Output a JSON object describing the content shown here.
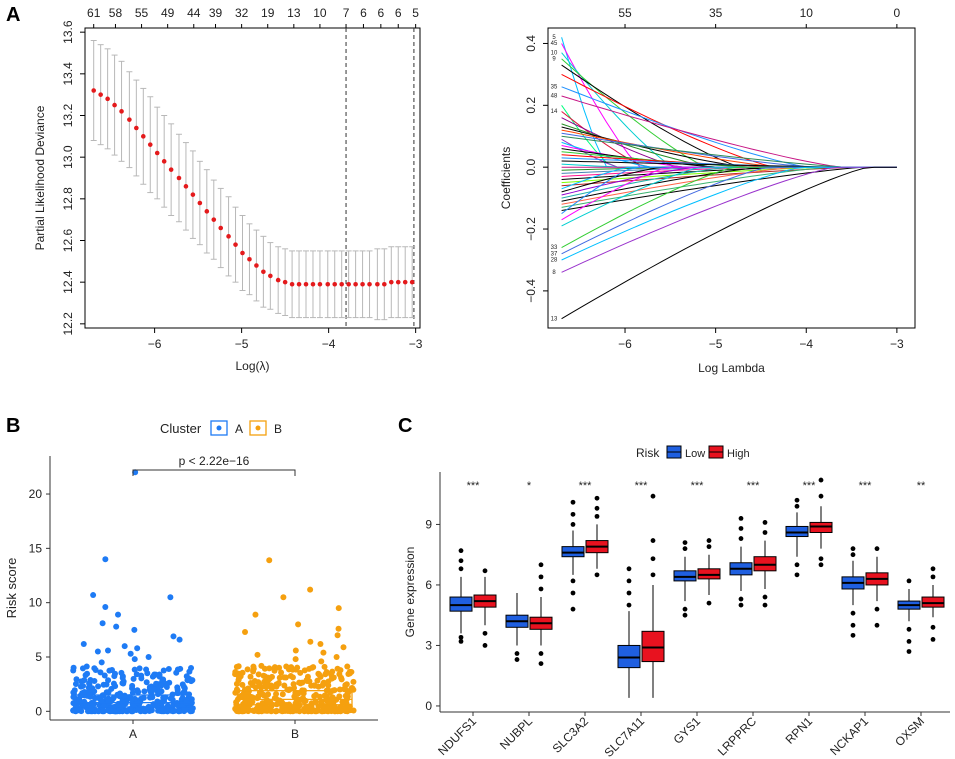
{
  "panels": {
    "A": "A",
    "B": "B",
    "C": "C"
  },
  "chart_data": [
    {
      "id": "A-left",
      "type": "line",
      "title": "",
      "xlabel": "Log(λ)",
      "ylabel": "Partial Likelihood Deviance",
      "xlim": [
        -6.8,
        -2.95
      ],
      "ylim": [
        12.18,
        13.62
      ],
      "x_ticks": [
        -6,
        -5,
        -4,
        -3
      ],
      "y_ticks": [
        12.2,
        12.4,
        12.6,
        12.8,
        13.0,
        13.2,
        13.4,
        13.6
      ],
      "top_ticks_x": [
        -6.7,
        -6.45,
        -6.15,
        -5.85,
        -5.55,
        -5.3,
        -5.0,
        -4.7,
        -4.4,
        -4.1,
        -3.8,
        -3.6,
        -3.4,
        -3.2,
        -3.0
      ],
      "top_ticks_labels": [
        "61",
        "58",
        "55",
        "49",
        "44",
        "39",
        "32",
        "19",
        "13",
        "10",
        "7",
        "6",
        "6",
        "6",
        "5"
      ],
      "vlines": [
        -3.8,
        -3.02
      ],
      "points": {
        "x": [
          -6.7,
          -6.62,
          -6.54,
          -6.46,
          -6.38,
          -6.29,
          -6.21,
          -6.13,
          -6.05,
          -5.97,
          -5.89,
          -5.81,
          -5.72,
          -5.64,
          -5.56,
          -5.48,
          -5.4,
          -5.32,
          -5.24,
          -5.15,
          -5.07,
          -4.99,
          -4.91,
          -4.83,
          -4.75,
          -4.67,
          -4.58,
          -4.5,
          -4.42,
          -4.34,
          -4.26,
          -4.18,
          -4.1,
          -4.01,
          -3.93,
          -3.85,
          -3.77,
          -3.69,
          -3.61,
          -3.53,
          -3.44,
          -3.36,
          -3.28,
          -3.2,
          -3.12,
          -3.04
        ],
        "y": [
          13.32,
          13.3,
          13.28,
          13.25,
          13.22,
          13.18,
          13.14,
          13.1,
          13.06,
          13.02,
          12.98,
          12.94,
          12.9,
          12.86,
          12.82,
          12.78,
          12.74,
          12.7,
          12.66,
          12.62,
          12.58,
          12.54,
          12.51,
          12.48,
          12.45,
          12.43,
          12.41,
          12.4,
          12.39,
          12.39,
          12.39,
          12.39,
          12.39,
          12.39,
          12.39,
          12.39,
          12.39,
          12.39,
          12.39,
          12.39,
          12.39,
          12.39,
          12.4,
          12.4,
          12.4,
          12.4
        ],
        "err": [
          0.24,
          0.24,
          0.24,
          0.24,
          0.24,
          0.23,
          0.23,
          0.23,
          0.23,
          0.22,
          0.22,
          0.22,
          0.21,
          0.21,
          0.21,
          0.2,
          0.2,
          0.19,
          0.19,
          0.19,
          0.18,
          0.18,
          0.17,
          0.17,
          0.17,
          0.16,
          0.16,
          0.16,
          0.16,
          0.16,
          0.16,
          0.16,
          0.16,
          0.16,
          0.16,
          0.16,
          0.16,
          0.16,
          0.16,
          0.16,
          0.17,
          0.17,
          0.17,
          0.17,
          0.17,
          0.17
        ]
      }
    },
    {
      "id": "A-right",
      "type": "line",
      "title": "",
      "xlabel": "Log Lambda",
      "ylabel": "Coefficients",
      "xlim": [
        -6.85,
        -2.8
      ],
      "ylim": [
        -0.52,
        0.45
      ],
      "x_ticks": [
        -6,
        -5,
        -4,
        -3
      ],
      "y_ticks": [
        -0.4,
        -0.2,
        0.0,
        0.2,
        0.4
      ],
      "top_ticks_x": [
        -6.0,
        -5.0,
        -4.0,
        -3.0
      ],
      "top_ticks_labels": [
        "55",
        "35",
        "10",
        "0"
      ],
      "side_labels": [
        {
          "text": "5",
          "y": 0.42
        },
        {
          "text": "45",
          "y": 0.4
        },
        {
          "text": "10",
          "y": 0.37
        },
        {
          "text": "9",
          "y": 0.35
        },
        {
          "text": "35",
          "y": 0.26
        },
        {
          "text": "48",
          "y": 0.23
        },
        {
          "text": "14",
          "y": 0.18
        },
        {
          "text": "33",
          "y": -0.26
        },
        {
          "text": "37",
          "y": -0.28
        },
        {
          "text": "28",
          "y": -0.3
        },
        {
          "text": "8",
          "y": -0.34
        },
        {
          "text": "13",
          "y": -0.49
        }
      ],
      "series_start_values": [
        0.42,
        0.4,
        0.37,
        0.35,
        0.33,
        0.3,
        0.26,
        0.23,
        0.2,
        0.18,
        0.16,
        0.14,
        0.13,
        0.12,
        0.11,
        0.1,
        0.09,
        0.08,
        0.07,
        0.06,
        0.05,
        0.04,
        0.03,
        0.02,
        0.01,
        0.0,
        -0.01,
        -0.02,
        -0.03,
        -0.04,
        -0.05,
        -0.06,
        -0.07,
        -0.08,
        -0.09,
        -0.1,
        -0.11,
        -0.12,
        -0.13,
        -0.14,
        -0.15,
        -0.17,
        -0.19,
        -0.26,
        -0.28,
        -0.3,
        -0.34,
        -0.49
      ],
      "series_colors": [
        "#00BFFF",
        "#FF00FF",
        "#00CED1",
        "#32CD32",
        "#000000",
        "#FF0000",
        "#1E90FF",
        "#C71585",
        "#00FF7F",
        "#DC143C",
        "#8B008B",
        "#228B22",
        "#000000",
        "#FF4500",
        "#4169E1",
        "#2E8B57",
        "#9932CC",
        "#00BFFF",
        "#FF00FF",
        "#000000",
        "#32CD32",
        "#FF0000",
        "#1E90FF",
        "#000000",
        "#00CED1",
        "#C71585",
        "#228B22",
        "#4682B4",
        "#FF1493",
        "#000000",
        "#7FFF00",
        "#B22222",
        "#00BFFF",
        "#000000",
        "#9400D3",
        "#20B2AA",
        "#000000",
        "#FF6347",
        "#3CB371",
        "#000000",
        "#1E90FF",
        "#FF00FF",
        "#00CED1",
        "#32CD32",
        "#4169E1",
        "#00BFFF",
        "#9932CC",
        "#000000"
      ]
    },
    {
      "id": "B",
      "type": "scatter",
      "title": "",
      "xlabel": "",
      "ylabel": "Risk score",
      "ylim": [
        -0.8,
        23.5
      ],
      "y_ticks": [
        0,
        5,
        10,
        15,
        20
      ],
      "categories": [
        "A",
        "B"
      ],
      "legend_title": "Cluster",
      "legend_labels": [
        "A",
        "B"
      ],
      "colors": [
        "#1E7BF5",
        "#F5A00F"
      ],
      "pvalue": "p < 2.22e−16",
      "boxes": [
        {
          "q1": 0.4,
          "median": 0.8,
          "q3": 1.5
        },
        {
          "q1": 0.6,
          "median": 1.1,
          "q3": 1.9
        }
      ],
      "outliers": [
        [
          22.0,
          14.0,
          10.7,
          10.5,
          9.6,
          8.9,
          8.1,
          7.8,
          7.5,
          6.9,
          6.6,
          6.2,
          6.0,
          5.8,
          5.6,
          5.5,
          5.3,
          5.0,
          4.8,
          4.5
        ],
        [
          13.9,
          11.2,
          10.5,
          9.5,
          8.9,
          8.0,
          7.6,
          7.3,
          7.0,
          6.4,
          6.2,
          5.9,
          5.6,
          5.4,
          5.2,
          5.0,
          4.8,
          4.6
        ]
      ]
    },
    {
      "id": "C",
      "type": "box",
      "title": "",
      "xlabel": "",
      "ylabel": "Gene expression",
      "ylim": [
        -0.3,
        11.6
      ],
      "y_ticks": [
        0,
        3,
        6,
        9
      ],
      "legend_title": "Risk",
      "legend_labels": [
        "Low",
        "High"
      ],
      "colors": [
        "#1F5FE0",
        "#E8121F"
      ],
      "categories": [
        "NDUFS1",
        "NUBPL",
        "SLC3A2",
        "SLC7A11",
        "GYS1",
        "LRPPRC",
        "RPN1",
        "NCKAP1",
        "OXSM"
      ],
      "significance": [
        "***",
        "*",
        "***",
        "***",
        "***",
        "***",
        "***",
        "***",
        "**"
      ],
      "series": [
        {
          "name": "Low",
          "boxes": [
            {
              "min": 3.6,
              "q1": 4.7,
              "median": 5.0,
              "q3": 5.4,
              "max": 6.4,
              "out_low": [
                3.2,
                3.4
              ],
              "out_high": [
                6.8,
                7.2,
                7.7
              ]
            },
            {
              "min": 3.0,
              "q1": 3.9,
              "median": 4.2,
              "q3": 4.5,
              "max": 5.6,
              "out_low": [
                2.6,
                2.3
              ],
              "out_high": []
            },
            {
              "min": 6.5,
              "q1": 7.4,
              "median": 7.6,
              "q3": 7.9,
              "max": 8.7,
              "out_low": [
                6.2,
                5.6,
                4.8
              ],
              "out_high": [
                9.0,
                9.5,
                10.1
              ]
            },
            {
              "min": 0.4,
              "q1": 1.9,
              "median": 2.4,
              "q3": 3.0,
              "max": 4.7,
              "out_low": [],
              "out_high": [
                5.0,
                5.6,
                6.2,
                6.8
              ]
            },
            {
              "min": 5.2,
              "q1": 6.2,
              "median": 6.4,
              "q3": 6.7,
              "max": 7.4,
              "out_low": [
                4.8,
                4.5
              ],
              "out_high": [
                7.8,
                8.1
              ]
            },
            {
              "min": 5.7,
              "q1": 6.5,
              "median": 6.8,
              "q3": 7.1,
              "max": 7.9,
              "out_low": [
                5.3,
                5.0
              ],
              "out_high": [
                8.3,
                8.8,
                9.3
              ]
            },
            {
              "min": 7.4,
              "q1": 8.4,
              "median": 8.6,
              "q3": 8.9,
              "max": 9.6,
              "out_low": [
                7.0,
                6.5
              ],
              "out_high": [
                9.9,
                10.2
              ]
            },
            {
              "min": 5.0,
              "q1": 5.8,
              "median": 6.1,
              "q3": 6.4,
              "max": 7.2,
              "out_low": [
                4.6,
                4.0,
                3.5
              ],
              "out_high": [
                7.5,
                7.8
              ]
            },
            {
              "min": 4.2,
              "q1": 4.8,
              "median": 5.0,
              "q3": 5.2,
              "max": 5.8,
              "out_low": [
                3.8,
                3.2,
                2.7
              ],
              "out_high": [
                6.2
              ]
            }
          ]
        },
        {
          "name": "High",
          "boxes": [
            {
              "min": 4.0,
              "q1": 4.9,
              "median": 5.2,
              "q3": 5.5,
              "max": 6.4,
              "out_low": [
                3.6,
                3.0
              ],
              "out_high": [
                6.7
              ]
            },
            {
              "min": 3.0,
              "q1": 3.8,
              "median": 4.1,
              "q3": 4.4,
              "max": 5.4,
              "out_low": [
                2.6,
                2.1
              ],
              "out_high": [
                5.8,
                6.4,
                7.0
              ]
            },
            {
              "min": 6.8,
              "q1": 7.6,
              "median": 7.9,
              "q3": 8.2,
              "max": 9.0,
              "out_low": [
                6.5
              ],
              "out_high": [
                9.4,
                9.8,
                10.3
              ]
            },
            {
              "min": 0.4,
              "q1": 2.2,
              "median": 2.9,
              "q3": 3.7,
              "max": 6.0,
              "out_low": [],
              "out_high": [
                6.5,
                7.3,
                8.2,
                10.4
              ]
            },
            {
              "min": 5.5,
              "q1": 6.3,
              "median": 6.5,
              "q3": 6.8,
              "max": 7.5,
              "out_low": [
                5.1
              ],
              "out_high": [
                7.9,
                8.2
              ]
            },
            {
              "min": 5.8,
              "q1": 6.7,
              "median": 7.0,
              "q3": 7.4,
              "max": 8.2,
              "out_low": [
                5.4,
                5.0
              ],
              "out_high": [
                8.6,
                9.1
              ]
            },
            {
              "min": 7.8,
              "q1": 8.6,
              "median": 8.9,
              "q3": 9.1,
              "max": 9.9,
              "out_low": [
                7.3,
                7.0
              ],
              "out_high": [
                10.4,
                11.2
              ]
            },
            {
              "min": 5.2,
              "q1": 6.0,
              "median": 6.3,
              "q3": 6.6,
              "max": 7.4,
              "out_low": [
                4.8,
                4.0
              ],
              "out_high": [
                7.8
              ]
            },
            {
              "min": 4.4,
              "q1": 4.9,
              "median": 5.1,
              "q3": 5.4,
              "max": 6.0,
              "out_low": [
                3.9,
                3.3
              ],
              "out_high": [
                6.4,
                6.8
              ]
            }
          ]
        }
      ]
    }
  ]
}
